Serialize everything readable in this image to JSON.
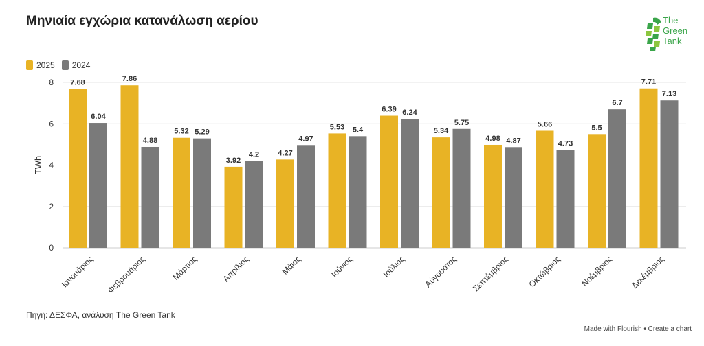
{
  "title": "Μηνιαία εγχώρια κατανάλωση αερίου",
  "logo": {
    "line1": "The",
    "line2": "Green",
    "line3": "Tank",
    "icon": "green-tank-leaf-icon"
  },
  "legend": [
    {
      "label": "2025",
      "color": "#e8b325"
    },
    {
      "label": "2024",
      "color": "#7a7a7a"
    }
  ],
  "source": "Πηγή: ΔΕΣΦΑ, ανάλυση The Green Tank",
  "credit": "Made with Flourish • Create a chart",
  "chart_data": {
    "type": "bar",
    "ylabel": "TWh",
    "ylim": [
      0,
      8
    ],
    "yticks": [
      0,
      2,
      4,
      6,
      8
    ],
    "grid": true,
    "legend_position": "top-left",
    "categories": [
      "Ιανουάριος",
      "Φεβρουάριος",
      "Μάρτιος",
      "Απρίλιος",
      "Μάιος",
      "Ιούνιος",
      "Ιούλιος",
      "Αύγουστος",
      "Σεπτέμβριος",
      "Οκτώβριος",
      "Νοέμβριος",
      "Δεκέμβριος"
    ],
    "series": [
      {
        "name": "2025",
        "color": "#e8b325",
        "values": [
          7.68,
          7.86,
          5.32,
          3.92,
          4.27,
          5.53,
          6.39,
          5.34,
          4.98,
          5.66,
          5.5,
          7.71
        ]
      },
      {
        "name": "2024",
        "color": "#7a7a7a",
        "values": [
          6.04,
          4.88,
          5.29,
          4.2,
          4.97,
          5.4,
          6.24,
          5.75,
          4.87,
          4.73,
          6.7,
          7.13
        ]
      }
    ]
  }
}
